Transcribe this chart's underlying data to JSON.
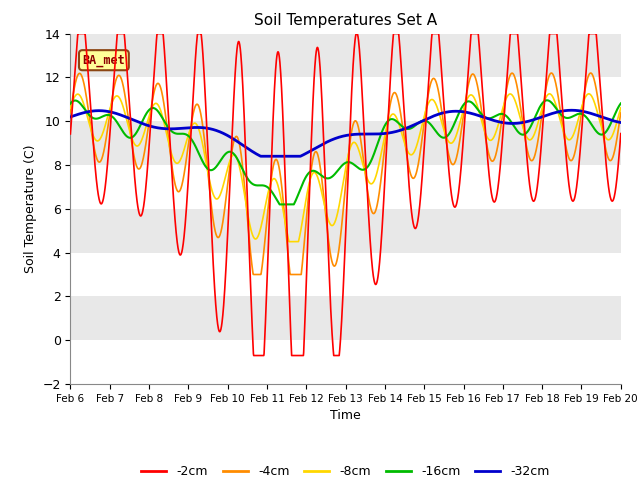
{
  "title": "Soil Temperatures Set A",
  "xlabel": "Time",
  "ylabel": "Soil Temperature (C)",
  "ylim": [
    -2,
    14
  ],
  "annotation": "BA_met",
  "line_colors": {
    "-2cm": "#FF0000",
    "-4cm": "#FF8C00",
    "-8cm": "#FFD700",
    "-16cm": "#00BB00",
    "-32cm": "#0000CC"
  },
  "bg_color": "#E8E8E8",
  "x_tick_labels": [
    "Feb 6",
    "Feb 7",
    "Feb 8",
    "Feb 9",
    "Feb 10",
    "Feb 11",
    "Feb 12",
    "Feb 13",
    "Feb 14",
    "Feb 15",
    "Feb 16",
    "Feb 17",
    "Feb 18",
    "Feb 19",
    "Feb 20"
  ],
  "grid_yticks": [
    -2,
    0,
    2,
    4,
    6,
    8,
    10,
    12,
    14
  ],
  "grid_color": "#FFFFFF",
  "annotation_bg": "#FFFF99",
  "annotation_border": "#8B4513",
  "line_widths": {
    "-2cm": 1.2,
    "-4cm": 1.2,
    "-8cm": 1.2,
    "-16cm": 1.5,
    "-32cm": 2.0
  }
}
